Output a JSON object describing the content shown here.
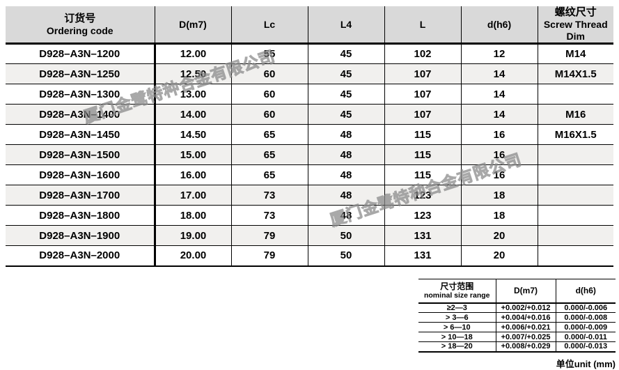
{
  "watermark": {
    "text": "厦门金鹭特种合金有限公司"
  },
  "colors": {
    "header_bg": "#d9d9d9",
    "alt_row_bg": "#f1f0ee",
    "border": "#000000",
    "watermark_gray": "#878787"
  },
  "main_table": {
    "col_headers": [
      {
        "line1": "订货号",
        "line2": "Ordering code"
      },
      {
        "line1": "D(m7)"
      },
      {
        "line1": "Lc"
      },
      {
        "line1": "L4"
      },
      {
        "line1": "L"
      },
      {
        "line1": "d(h6)"
      },
      {
        "line1": "螺纹尺寸",
        "line2": "Screw Thread Dim"
      }
    ],
    "rows": [
      [
        "D928–A3N–1200",
        "12.00",
        "55",
        "45",
        "102",
        "12",
        "M14"
      ],
      [
        "D928–A3N–1250",
        "12.50",
        "60",
        "45",
        "107",
        "14",
        "M14X1.5"
      ],
      [
        "D928–A3N–1300",
        "13.00",
        "60",
        "45",
        "107",
        "14",
        ""
      ],
      [
        "D928–A3N–1400",
        "14.00",
        "60",
        "45",
        "107",
        "14",
        "M16"
      ],
      [
        "D928–A3N–1450",
        "14.50",
        "65",
        "48",
        "115",
        "16",
        "M16X1.5"
      ],
      [
        "D928–A3N–1500",
        "15.00",
        "65",
        "48",
        "115",
        "16",
        ""
      ],
      [
        "D928–A3N–1600",
        "16.00",
        "65",
        "48",
        "115",
        "16",
        ""
      ],
      [
        "D928–A3N–1700",
        "17.00",
        "73",
        "48",
        "123",
        "18",
        ""
      ],
      [
        "D928–A3N–1800",
        "18.00",
        "73",
        "48",
        "123",
        "18",
        ""
      ],
      [
        "D928–A3N–1900",
        "19.00",
        "79",
        "50",
        "131",
        "20",
        ""
      ],
      [
        "D928–A3N–2000",
        "20.00",
        "79",
        "50",
        "131",
        "20",
        ""
      ]
    ]
  },
  "tolerance_table": {
    "header": {
      "range_line1": "尺寸范围",
      "range_line2": "nominal size range",
      "d_m7": "D(m7)",
      "d_h6": "d(h6)"
    },
    "rows": [
      [
        "≥2—3",
        "+0.002/+0.012",
        "0.000/-0.006"
      ],
      [
        "> 3—6",
        "+0.004/+0.016",
        "0.000/-0.008"
      ],
      [
        "> 6—10",
        "+0.006/+0.021",
        "0.000/-0.009"
      ],
      [
        "> 10—18",
        "+0.007/+0.025",
        "0.000/-0.011"
      ],
      [
        "> 18—20",
        "+0.008/+0.029",
        "0.000/-0.013"
      ]
    ]
  },
  "unit_label": "单位unit (mm)"
}
